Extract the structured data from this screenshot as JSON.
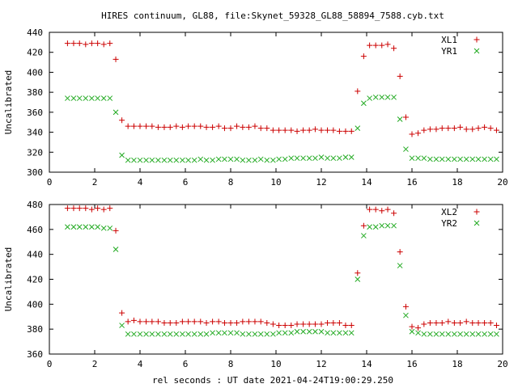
{
  "title": "HIRES continuum, GL88, file:Skynet_59328_GL88_58894_7588.cyb.txt",
  "xlabel": "rel seconds : UT date 2021-04-24T19:00:29.250",
  "colors": {
    "series1": "#cc0000",
    "series2": "#22aa22"
  },
  "chart_data": [
    {
      "type": "scatter",
      "ylabel": "Uncalibrated",
      "xlim": [
        0,
        20
      ],
      "ylim": [
        300,
        440
      ],
      "xticks": [
        "0",
        "2",
        "4",
        "6",
        "8",
        "10",
        "12",
        "14",
        "16",
        "18",
        "20"
      ],
      "yticks": [
        "300",
        "320",
        "340",
        "360",
        "380",
        "400",
        "420",
        "440"
      ],
      "legend_position": "top-right",
      "x": [
        0.8,
        1.07,
        1.33,
        1.6,
        1.87,
        2.13,
        2.4,
        2.67,
        2.93,
        3.2,
        3.47,
        3.73,
        4.0,
        4.27,
        4.53,
        4.8,
        5.07,
        5.33,
        5.6,
        5.87,
        6.13,
        6.4,
        6.67,
        6.93,
        7.2,
        7.47,
        7.73,
        8.0,
        8.27,
        8.53,
        8.8,
        9.07,
        9.33,
        9.6,
        9.87,
        10.13,
        10.4,
        10.67,
        10.93,
        11.2,
        11.47,
        11.73,
        12.0,
        12.27,
        12.53,
        12.8,
        13.07,
        13.33,
        13.6,
        13.87,
        14.13,
        14.4,
        14.67,
        14.93,
        15.2,
        15.47,
        15.73,
        16.0,
        16.27,
        16.53,
        16.8,
        17.07,
        17.33,
        17.6,
        17.87,
        18.13,
        18.4,
        18.67,
        18.93,
        19.2,
        19.47,
        19.73
      ],
      "series": [
        {
          "name": "XL1",
          "marker": "plus",
          "values": [
            429,
            429,
            429,
            428,
            429,
            429,
            428,
            429,
            413,
            352,
            346,
            346,
            346,
            346,
            346,
            345,
            345,
            345,
            346,
            345,
            346,
            346,
            346,
            345,
            345,
            346,
            344,
            344,
            346,
            345,
            345,
            346,
            344,
            344,
            342,
            342,
            342,
            342,
            341,
            342,
            342,
            343,
            342,
            342,
            342,
            341,
            341,
            341,
            381,
            416,
            427,
            427,
            427,
            428,
            424,
            396,
            355,
            338,
            339,
            342,
            343,
            343,
            344,
            344,
            344,
            345,
            343,
            343,
            344,
            345,
            344,
            342
          ]
        },
        {
          "name": "YR1",
          "marker": "cross",
          "values": [
            374,
            374,
            374,
            374,
            374,
            374,
            374,
            374,
            360,
            317,
            312,
            312,
            312,
            312,
            312,
            312,
            312,
            312,
            312,
            312,
            312,
            312,
            313,
            312,
            312,
            313,
            313,
            313,
            313,
            312,
            312,
            312,
            313,
            312,
            312,
            313,
            313,
            314,
            314,
            314,
            314,
            314,
            315,
            314,
            314,
            314,
            315,
            315,
            344,
            369,
            374,
            375,
            375,
            375,
            375,
            353,
            323,
            314,
            314,
            314,
            313,
            313,
            313,
            313,
            313,
            313,
            313,
            313,
            313,
            313,
            313,
            313
          ]
        }
      ]
    },
    {
      "type": "scatter",
      "ylabel": "Uncalibrated",
      "xlim": [
        0,
        20
      ],
      "ylim": [
        360,
        480
      ],
      "xticks": [
        "0",
        "2",
        "4",
        "6",
        "8",
        "10",
        "12",
        "14",
        "16",
        "18",
        "20"
      ],
      "yticks": [
        "360",
        "380",
        "400",
        "420",
        "440",
        "460",
        "480"
      ],
      "legend_position": "top-right",
      "x": [
        0.8,
        1.07,
        1.33,
        1.6,
        1.87,
        2.13,
        2.4,
        2.67,
        2.93,
        3.2,
        3.47,
        3.73,
        4.0,
        4.27,
        4.53,
        4.8,
        5.07,
        5.33,
        5.6,
        5.87,
        6.13,
        6.4,
        6.67,
        6.93,
        7.2,
        7.47,
        7.73,
        8.0,
        8.27,
        8.53,
        8.8,
        9.07,
        9.33,
        9.6,
        9.87,
        10.13,
        10.4,
        10.67,
        10.93,
        11.2,
        11.47,
        11.73,
        12.0,
        12.27,
        12.53,
        12.8,
        13.07,
        13.33,
        13.6,
        13.87,
        14.13,
        14.4,
        14.67,
        14.93,
        15.2,
        15.47,
        15.73,
        16.0,
        16.27,
        16.53,
        16.8,
        17.07,
        17.33,
        17.6,
        17.87,
        18.13,
        18.4,
        18.67,
        18.93,
        19.2,
        19.47,
        19.73
      ],
      "series": [
        {
          "name": "XL2",
          "marker": "plus",
          "values": [
            477,
            477,
            477,
            477,
            476,
            477,
            476,
            477,
            459,
            393,
            386,
            387,
            386,
            386,
            386,
            386,
            385,
            385,
            385,
            386,
            386,
            386,
            386,
            385,
            386,
            386,
            385,
            385,
            385,
            386,
            386,
            386,
            386,
            385,
            384,
            383,
            383,
            383,
            384,
            384,
            384,
            384,
            384,
            385,
            385,
            385,
            383,
            383,
            425,
            463,
            476,
            476,
            475,
            476,
            473,
            442,
            398,
            382,
            381,
            384,
            385,
            385,
            385,
            386,
            385,
            385,
            386,
            385,
            385,
            385,
            385,
            383
          ]
        },
        {
          "name": "YR2",
          "marker": "cross",
          "values": [
            462,
            462,
            462,
            462,
            462,
            462,
            461,
            461,
            444,
            383,
            376,
            376,
            376,
            376,
            376,
            376,
            376,
            376,
            376,
            376,
            376,
            376,
            376,
            376,
            377,
            377,
            377,
            377,
            377,
            376,
            376,
            376,
            376,
            376,
            376,
            377,
            377,
            377,
            378,
            378,
            378,
            378,
            378,
            377,
            377,
            377,
            377,
            377,
            420,
            455,
            462,
            462,
            463,
            463,
            463,
            431,
            391,
            378,
            377,
            376,
            376,
            376,
            376,
            376,
            376,
            376,
            376,
            376,
            376,
            376,
            376,
            376
          ]
        }
      ]
    }
  ]
}
